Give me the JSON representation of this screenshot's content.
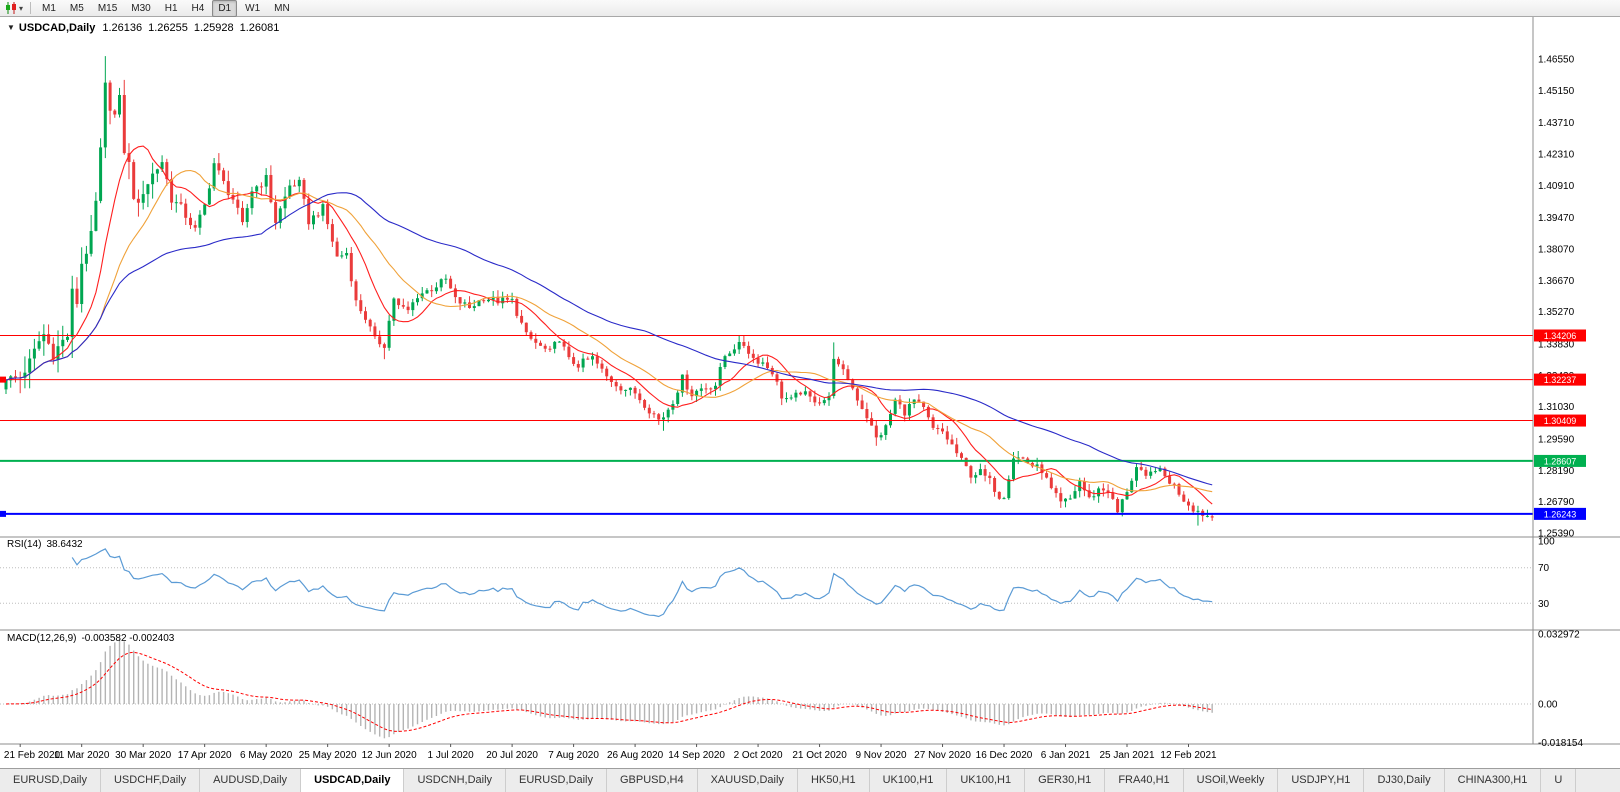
{
  "toolbar": {
    "chart_type_icon": "candlestick-chart",
    "dropdown_icon": "▾",
    "timeframes": [
      "M1",
      "M5",
      "M15",
      "M30",
      "H1",
      "H4",
      "D1",
      "W1",
      "MN"
    ],
    "active_timeframe": "D1"
  },
  "chart": {
    "title": {
      "collapse_icon": "▼",
      "symbol": "USDCAD,Daily",
      "open": "1.26136",
      "high": "1.26255",
      "low": "1.25928",
      "close": "1.26081"
    },
    "price_axis_labels": [
      "1.46550",
      "1.45150",
      "1.43710",
      "1.42310",
      "1.40910",
      "1.39470",
      "1.38070",
      "1.36670",
      "1.35270",
      "1.33830",
      "1.32430",
      "1.31030",
      "1.29590",
      "1.28190",
      "1.26790",
      "1.25390"
    ]
  },
  "rsi": {
    "label": "RSI(14)",
    "value": "38.6432",
    "axis_labels": [
      "100",
      "70",
      "30"
    ],
    "level_lines": [
      70,
      30
    ]
  },
  "macd": {
    "label": "MACD(12,26,9)",
    "values": "-0.003582 -0.002403",
    "axis_labels": [
      "0.032972",
      "0.00",
      "-0.018154"
    ]
  },
  "time_axis": [
    "21 Feb 2020",
    "11 Mar 2020",
    "30 Mar 2020",
    "17 Apr 2020",
    "6 May 2020",
    "25 May 2020",
    "12 Jun 2020",
    "1 Jul 2020",
    "20 Jul 2020",
    "7 Aug 2020",
    "26 Aug 2020",
    "14 Sep 2020",
    "2 Oct 2020",
    "21 Oct 2020",
    "9 Nov 2020",
    "27 Nov 2020",
    "16 Dec 2020",
    "6 Jan 2021",
    "25 Jan 2021",
    "12 Feb 2021"
  ],
  "tabs": {
    "active_index": 3,
    "items": [
      "EURUSD,Daily",
      "USDCHF,Daily",
      "AUDUSD,Daily",
      "USDCAD,Daily",
      "USDCNH,Daily",
      "EURUSD,Daily",
      "GBPUSD,H4",
      "XAUUSD,Daily",
      "HK50,H1",
      "UK100,H1",
      "UK100,H1",
      "GER30,H1",
      "FRA40,H1",
      "USOil,Weekly",
      "USDJPY,H1",
      "DJ30,Daily",
      "CHINA300,H1",
      "U"
    ]
  },
  "chart_data": {
    "type": "candlestick",
    "symbol": "USDCAD",
    "timeframe": "Daily",
    "ohlc_current": {
      "open": 1.26136,
      "high": 1.26255,
      "low": 1.25928,
      "close": 1.26081
    },
    "bar_count": 256,
    "noise": 0.0035,
    "colors": {
      "bull": "#00a651",
      "bear": "#ea3b3b"
    },
    "close_anchors": [
      [
        0,
        1.322
      ],
      [
        3,
        1.3235
      ],
      [
        5,
        1.33
      ],
      [
        7,
        1.3395
      ],
      [
        8,
        1.3425
      ],
      [
        10,
        1.334
      ],
      [
        12,
        1.3395
      ],
      [
        13,
        1.342
      ],
      [
        14,
        1.361
      ],
      [
        15,
        1.357
      ],
      [
        16,
        1.3745
      ],
      [
        17,
        1.38
      ],
      [
        18,
        1.386
      ],
      [
        19,
        1.401
      ],
      [
        20,
        1.424
      ],
      [
        21,
        1.453
      ],
      [
        22,
        1.445
      ],
      [
        23,
        1.44
      ],
      [
        24,
        1.447
      ],
      [
        25,
        1.425
      ],
      [
        26,
        1.418
      ],
      [
        27,
        1.405
      ],
      [
        28,
        1.399
      ],
      [
        29,
        1.407
      ],
      [
        31,
        1.414
      ],
      [
        33,
        1.42
      ],
      [
        35,
        1.403
      ],
      [
        37,
        1.399
      ],
      [
        40,
        1.389
      ],
      [
        42,
        1.4
      ],
      [
        44,
        1.419
      ],
      [
        46,
        1.41
      ],
      [
        48,
        1.403
      ],
      [
        50,
        1.391
      ],
      [
        52,
        1.407
      ],
      [
        55,
        1.412
      ],
      [
        57,
        1.393
      ],
      [
        60,
        1.409
      ],
      [
        62,
        1.41
      ],
      [
        64,
        1.393
      ],
      [
        67,
        1.399
      ],
      [
        70,
        1.377
      ],
      [
        72,
        1.379
      ],
      [
        74,
        1.357
      ],
      [
        76,
        1.35
      ],
      [
        78,
        1.34
      ],
      [
        80,
        1.338
      ],
      [
        82,
        1.359
      ],
      [
        83,
        1.355
      ],
      [
        85,
        1.353
      ],
      [
        87,
        1.36
      ],
      [
        90,
        1.363
      ],
      [
        93,
        1.367
      ],
      [
        95,
        1.358
      ],
      [
        98,
        1.3545
      ],
      [
        101,
        1.359
      ],
      [
        104,
        1.3575
      ],
      [
        107,
        1.3575
      ],
      [
        110,
        1.342
      ],
      [
        113,
        1.337
      ],
      [
        115,
        1.3345
      ],
      [
        117,
        1.341
      ],
      [
        119,
        1.331
      ],
      [
        121,
        1.329
      ],
      [
        124,
        1.332
      ],
      [
        127,
        1.3235
      ],
      [
        130,
        1.319
      ],
      [
        133,
        1.3165
      ],
      [
        136,
        1.309
      ],
      [
        138,
        1.3045
      ],
      [
        139,
        1.306
      ],
      [
        141,
        1.313
      ],
      [
        143,
        1.323
      ],
      [
        145,
        1.316
      ],
      [
        147,
        1.3185
      ],
      [
        150,
        1.32
      ],
      [
        152,
        1.333
      ],
      [
        154,
        1.337
      ],
      [
        156,
        1.338
      ],
      [
        158,
        1.332
      ],
      [
        160,
        1.33
      ],
      [
        162,
        1.326
      ],
      [
        164,
        1.315
      ],
      [
        166,
        1.313
      ],
      [
        168,
        1.317
      ],
      [
        170,
        1.314
      ],
      [
        172,
        1.313
      ],
      [
        174,
        1.314
      ],
      [
        175,
        1.333
      ],
      [
        176,
        1.328
      ],
      [
        178,
        1.323
      ],
      [
        180,
        1.314
      ],
      [
        182,
        1.306
      ],
      [
        184,
        1.296
      ],
      [
        186,
        1.301
      ],
      [
        188,
        1.313
      ],
      [
        190,
        1.308
      ],
      [
        192,
        1.313
      ],
      [
        194,
        1.309
      ],
      [
        196,
        1.3
      ],
      [
        198,
        1.299
      ],
      [
        200,
        1.293
      ],
      [
        202,
        1.286
      ],
      [
        204,
        1.28
      ],
      [
        206,
        1.281
      ],
      [
        208,
        1.277
      ],
      [
        210,
        1.2705
      ],
      [
        211,
        1.271
      ],
      [
        213,
        1.288
      ],
      [
        215,
        1.287
      ],
      [
        217,
        1.284
      ],
      [
        219,
        1.282
      ],
      [
        221,
        1.273
      ],
      [
        223,
        1.267
      ],
      [
        225,
        1.269
      ],
      [
        227,
        1.277
      ],
      [
        229,
        1.269
      ],
      [
        231,
        1.2735
      ],
      [
        233,
        1.273
      ],
      [
        235,
        1.263
      ],
      [
        237,
        1.273
      ],
      [
        239,
        1.283
      ],
      [
        241,
        1.278
      ],
      [
        243,
        1.283
      ],
      [
        245,
        1.279
      ],
      [
        247,
        1.275
      ],
      [
        249,
        1.269
      ],
      [
        251,
        1.265
      ],
      [
        253,
        1.2625
      ],
      [
        255,
        1.2608
      ]
    ],
    "spikes": [
      {
        "i": 8,
        "high": 1.3465
      },
      {
        "i": 14,
        "low": 1.332
      },
      {
        "i": 21,
        "high": 1.4668
      },
      {
        "i": 22,
        "high": 1.456
      },
      {
        "i": 80,
        "low": 1.3315
      },
      {
        "i": 139,
        "low": 1.2995
      },
      {
        "i": 156,
        "high": 1.3421
      },
      {
        "i": 175,
        "high": 1.339
      },
      {
        "i": 184,
        "low": 1.2928
      },
      {
        "i": 252,
        "low": 1.2572
      }
    ],
    "moving_averages": [
      {
        "period": 10,
        "color": "#ff1f1f"
      },
      {
        "period": 21,
        "color": "#f0a23a"
      },
      {
        "period": 55,
        "color": "#2a2ac8"
      }
    ],
    "levels": [
      {
        "label": "1.34206",
        "price": 1.34206,
        "color": "#ff0000",
        "width": 1,
        "left_marker": false
      },
      {
        "label": "1.32237",
        "price": 1.32237,
        "color": "#ff0000",
        "width": 1,
        "left_marker": true
      },
      {
        "label": "1.30409",
        "price": 1.30409,
        "color": "#ff0000",
        "width": 1,
        "left_marker": false
      },
      {
        "label": "1.28607",
        "price": 1.28607,
        "color": "#00b050",
        "width": 2,
        "left_marker": false
      },
      {
        "label": "1.26243",
        "price": 1.26243,
        "color": "#0000ff",
        "width": 2,
        "left_marker": true
      }
    ],
    "indicators": {
      "rsi": {
        "period": 14,
        "current": 38.6432,
        "levels": [
          70,
          30
        ],
        "color": "#5b9bd5"
      },
      "macd": {
        "fast": 12,
        "slow": 26,
        "signal": 9,
        "macd_value": -0.003582,
        "signal_value": -0.002403,
        "histogram_color": "#b4b4b4",
        "signal_color": "#ff0000"
      }
    }
  }
}
